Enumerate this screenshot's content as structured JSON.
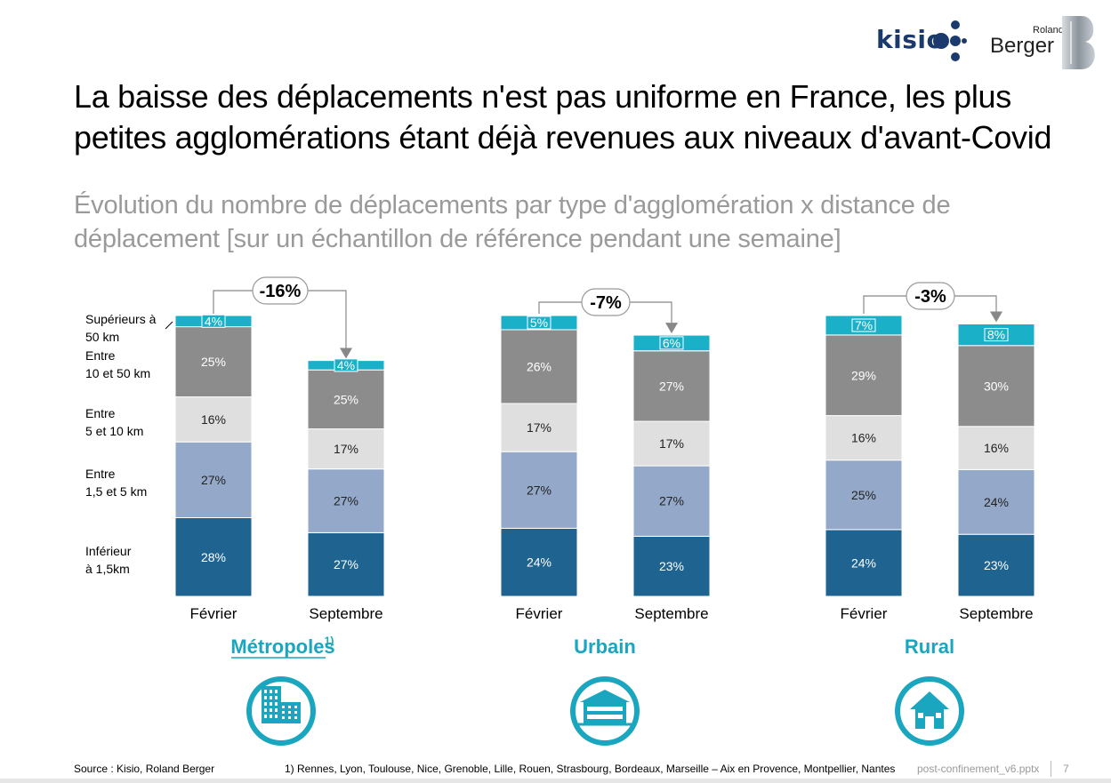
{
  "header": {
    "logo_kisio": "kisio",
    "logo_rb_small": "Roland",
    "logo_rb": "Berger"
  },
  "title_line1": "La baisse des déplacements n'est pas uniforme en France, les plus",
  "title_line2": "petites agglomérations étant déjà revenues aux niveaux d'avant-Covid",
  "subtitle_line1": "Évolution du nombre de déplacements par type d'agglomération x distance de",
  "subtitle_line2": "déplacement [sur un échantillon de référence pendant une semaine]",
  "colors": {
    "segments": [
      "#1f6391",
      "#94a9c9",
      "#dfdfdf",
      "#8c8c8c",
      "#1ab0c8"
    ],
    "label_dark_bg": "#ffffff",
    "label_light_bg": "#222222",
    "group_label": "#1aa6bf",
    "icon_ring": "#1aa6bf"
  },
  "chart_data": {
    "type": "bar",
    "stacked": true,
    "series_names": [
      "Inférieur à 1,5km",
      "Entre 1,5 et 5 km",
      "Entre 5 et 10 km",
      "Entre 10 et 50 km",
      "Supérieurs à 50 km"
    ],
    "legend_lines": [
      [
        "Supérieurs à",
        "50 km"
      ],
      [
        "Entre",
        "10 et 50 km"
      ],
      [
        "Entre",
        "5 et 10 km"
      ],
      [
        "Entre",
        "1,5 et 5 km"
      ],
      [
        "Inférieur",
        "à 1,5km"
      ]
    ],
    "groups": [
      {
        "name": "Métropoles",
        "name_superscript": "1)",
        "change": "-16%",
        "icon": "city-buildings-icon",
        "bars": [
          {
            "label": "Février",
            "total_index": 100,
            "values": [
              28,
              27,
              16,
              25,
              4
            ],
            "labels": [
              "28%",
              "27%",
              "16%",
              "25%",
              "4%"
            ]
          },
          {
            "label": "Septembre",
            "total_index": 84,
            "values": [
              27,
              27,
              17,
              25,
              4
            ],
            "labels": [
              "27%",
              "27%",
              "17%",
              "25%",
              "4%"
            ]
          }
        ]
      },
      {
        "name": "Urbain",
        "name_superscript": "",
        "change": "-7%",
        "icon": "town-house-icon",
        "bars": [
          {
            "label": "Février",
            "total_index": 100,
            "values": [
              24,
              27,
              17,
              26,
              5
            ],
            "labels": [
              "24%",
              "27%",
              "17%",
              "26%",
              "5%"
            ]
          },
          {
            "label": "Septembre",
            "total_index": 93,
            "values": [
              23,
              27,
              17,
              27,
              6
            ],
            "labels": [
              "23%",
              "27%",
              "17%",
              "27%",
              "6%"
            ]
          }
        ]
      },
      {
        "name": "Rural",
        "name_superscript": "",
        "change": "-3%",
        "icon": "home-icon",
        "bars": [
          {
            "label": "Février",
            "total_index": 100,
            "values": [
              24,
              25,
              16,
              29,
              7
            ],
            "labels": [
              "24%",
              "25%",
              "16%",
              "29%",
              "7%"
            ]
          },
          {
            "label": "Septembre",
            "total_index": 97,
            "values": [
              23,
              24,
              16,
              30,
              8
            ],
            "labels": [
              "23%",
              "24%",
              "16%",
              "30%",
              "8%"
            ]
          }
        ]
      }
    ]
  },
  "footer": {
    "source": "Source : Kisio, Roland Berger",
    "note": "1) Rennes, Lyon, Toulouse, Nice, Grenoble, Lille, Rouen, Strasbourg, Bordeaux, Marseille – Aix en Provence, Montpellier, Nantes",
    "file": "post-confinement_v6.pptx",
    "page": "7"
  }
}
